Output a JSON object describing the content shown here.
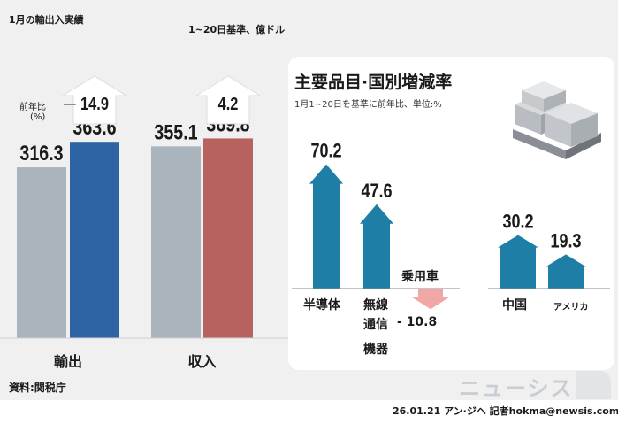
{
  "header": {
    "title": "1月の輸出入実績",
    "subtitle": "1~20日基準、億ドル"
  },
  "left_chart": {
    "yoy_label_line1": "前年比",
    "yoy_label_line2": "(%)"
  },
  "right_panel": {
    "title": "主要品目·国別増減率",
    "subtitle": "1月1~20日を基準に前年比、単位:%",
    "label_semiconductor": "半導体",
    "label_wireless_1": "無線",
    "label_wireless_2": "通信",
    "label_wireless_3": "機器",
    "label_car": "乗用車",
    "label_china": "中国",
    "label_usa": "アメリカ",
    "car_value_text": "- 10.8"
  },
  "source": "資料:関税庁",
  "credit": "26.01.21 アン·ジヘ 記者hokma@newsis.com",
  "watermark": "ニューシス",
  "colors": {
    "gray_bar": "#a9b4bd",
    "blue_bar": "#2e63a4",
    "red_bar": "#b8625f",
    "teal": "#1e7ea6",
    "pink": "#f2a7a7"
  },
  "chart_data": [
    {
      "type": "bar",
      "title": "1月の輸出入実績",
      "subtitle": "1~20日基準、億ドル",
      "categories": [
        "輸出",
        "収入"
      ],
      "series": [
        {
          "values": [
            316.3,
            355.1
          ]
        },
        {
          "values": [
            363.6,
            369.8
          ]
        }
      ],
      "yoy_percent": [
        14.9,
        4.2
      ],
      "ylim": [
        0,
        400
      ],
      "grid": false
    },
    {
      "type": "bar",
      "title": "主要品目·国別増減率",
      "subtitle": "1月1~20日を基準に前年比、単位:%",
      "groups": [
        {
          "categories": [
            "半導体",
            "無線通信機器",
            "乗用車"
          ],
          "values": [
            70.2,
            47.6,
            -10.8
          ]
        },
        {
          "categories": [
            "中国",
            "アメリカ"
          ],
          "values": [
            30.2,
            19.3
          ]
        }
      ],
      "grid": false
    }
  ]
}
